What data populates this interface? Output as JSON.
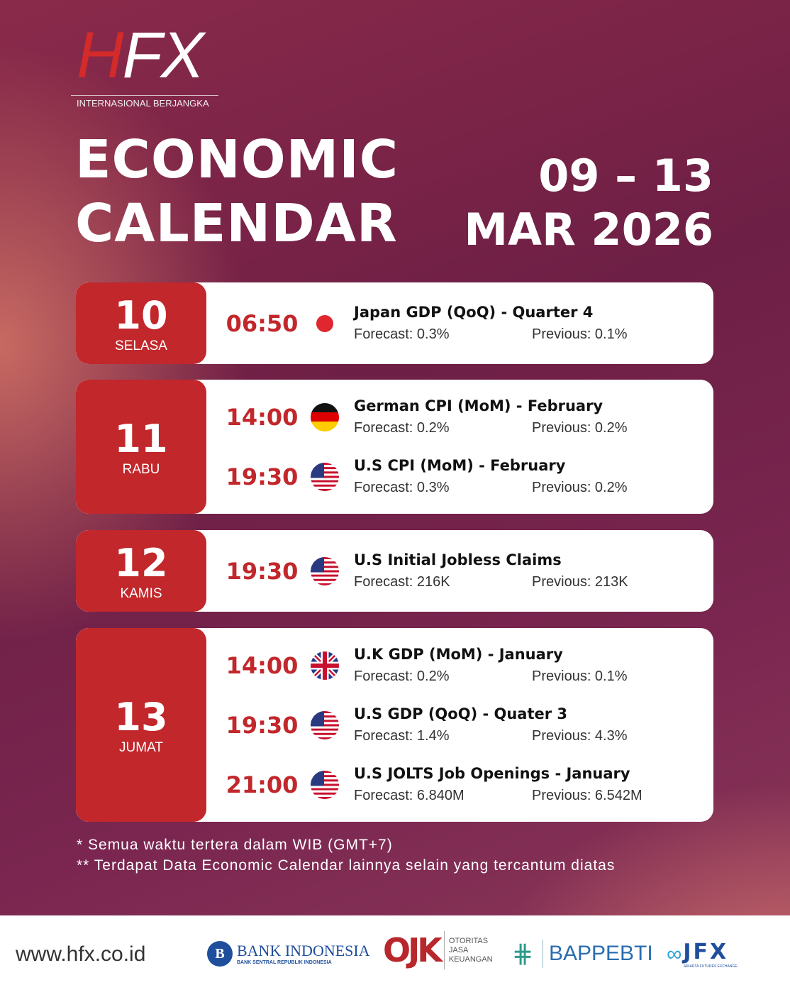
{
  "logo": {
    "h": "H",
    "fx": "FX",
    "subtitle": "INTERNASIONAL BERJANGKA"
  },
  "title": {
    "line1": "ECONOMIC",
    "line2": "CALENDAR"
  },
  "dates": {
    "range": "09 – 13",
    "month": "MAR 2026"
  },
  "days": [
    {
      "num": "10",
      "name": "SELASA",
      "events": [
        {
          "time": "06:50",
          "flag": "japan",
          "name": "Japan GDP (QoQ) - Quarter 4",
          "forecast": "Forecast: 0.3%",
          "previous": "Previous: 0.1%"
        }
      ]
    },
    {
      "num": "11",
      "name": "RABU",
      "events": [
        {
          "time": "14:00",
          "flag": "germany",
          "name": "German CPI (MoM) - February",
          "forecast": "Forecast: 0.2%",
          "previous": "Previous: 0.2%"
        },
        {
          "time": "19:30",
          "flag": "usa",
          "name": "U.S CPI (MoM) - February",
          "forecast": "Forecast: 0.3%",
          "previous": "Previous: 0.2%"
        }
      ]
    },
    {
      "num": "12",
      "name": "KAMIS",
      "events": [
        {
          "time": "19:30",
          "flag": "usa",
          "name": "U.S Initial Jobless Claims",
          "forecast": "Forecast: 216K",
          "previous": "Previous: 213K"
        }
      ]
    },
    {
      "num": "13",
      "name": "JUMAT",
      "events": [
        {
          "time": "14:00",
          "flag": "uk",
          "name": "U.K GDP (MoM) - January",
          "forecast": "Forecast: 0.2%",
          "previous": "Previous: 0.1%"
        },
        {
          "time": "19:30",
          "flag": "usa",
          "name": "U.S GDP (QoQ) - Quater 3",
          "forecast": "Forecast: 1.4%",
          "previous": "Previous: 4.3%"
        },
        {
          "time": "21:00",
          "flag": "usa",
          "name": "U.S JOLTS Job Openings - January",
          "forecast": "Forecast: 6.840M",
          "previous": "Previous: 6.542M"
        }
      ]
    }
  ],
  "notes": [
    "* Semua waktu tertera dalam WIB (GMT+7)",
    "** Terdapat Data Economic Calendar lainnya selain yang tercantum diatas"
  ],
  "footer": {
    "url": "www.hfx.co.id",
    "logos": {
      "bi": "BANK INDONESIA",
      "bi_sub": "BANK SENTRAL REPUBLIK INDONESIA",
      "ojk": "OJK",
      "ojk_sub": [
        "OTORITAS",
        "JASA",
        "KEUANGAN"
      ],
      "bappebti": "BAPPEBTI",
      "jfx": "JFX",
      "jfx_sub": "JAKARTA FUTURES EXCHANGE"
    }
  },
  "colors": {
    "accent": "#c1272b",
    "background": "#7a2448"
  }
}
